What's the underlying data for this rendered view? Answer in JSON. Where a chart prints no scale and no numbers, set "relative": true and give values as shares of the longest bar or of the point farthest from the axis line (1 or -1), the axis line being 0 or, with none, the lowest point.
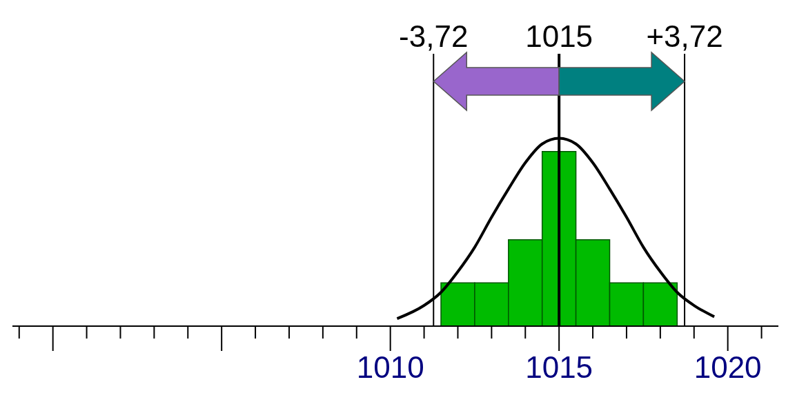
{
  "chart_data": {
    "type": "histogram",
    "relative": true,
    "series": [
      {
        "type": "histogram",
        "color": "#00bb00",
        "bins": [
          1011.5,
          1012.5,
          1013.5,
          1014.5,
          1015.5,
          1016.5,
          1017.5,
          1018.5
        ],
        "values": [
          0.23,
          0.23,
          0.46,
          0.93,
          0.46,
          0.23,
          0.23
        ]
      },
      {
        "type": "line",
        "color": "#000000",
        "x": [
          1010.2,
          1011,
          1011.5,
          1012,
          1012.5,
          1013,
          1013.5,
          1014,
          1014.5,
          1015,
          1015.5,
          1016,
          1016.5,
          1017,
          1017.5,
          1018,
          1018.5,
          1019,
          1019.6
        ],
        "values": [
          0.04,
          0.11,
          0.18,
          0.29,
          0.42,
          0.58,
          0.73,
          0.87,
          0.97,
          1,
          0.97,
          0.87,
          0.73,
          0.58,
          0.42,
          0.29,
          0.18,
          0.11,
          0.05
        ]
      }
    ],
    "xlim": [
      998.8,
      1021.5
    ],
    "xticks": [
      1010,
      1015,
      1020
    ],
    "ref_lines": [
      {
        "axis": "x",
        "value": 1011.28,
        "color": "#000000"
      },
      {
        "axis": "x",
        "value": 1015,
        "label": "1015",
        "color": "#000000"
      },
      {
        "axis": "x",
        "value": 1018.72,
        "color": "#000000"
      }
    ],
    "annotations": [
      "-3,72",
      "+3,72"
    ],
    "grid": false
  }
}
